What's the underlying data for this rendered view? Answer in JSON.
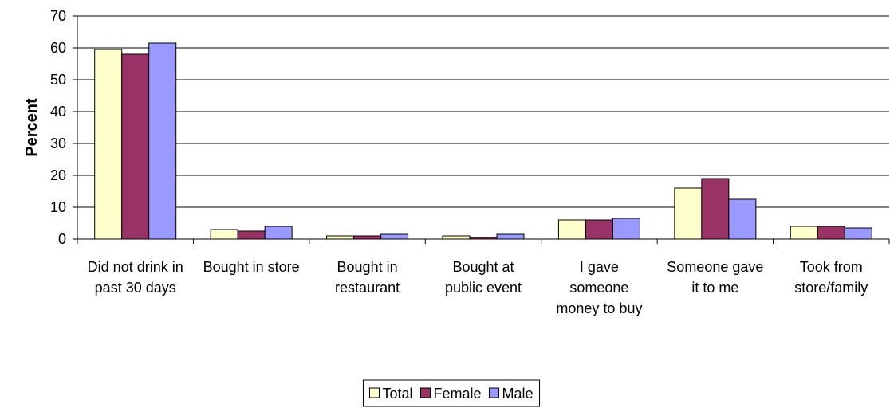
{
  "chart_data": {
    "type": "bar",
    "y_label": "Percent",
    "categories": [
      "Did not drink in past 30 days",
      "Bought in store",
      "Bought in restaurant",
      "Bought at public event",
      "I gave someone money to buy",
      "Someone gave it to me",
      "Took from store/family"
    ],
    "series": [
      {
        "name": "Total",
        "color": "#ffffcc",
        "values": [
          59.5,
          3,
          1,
          1,
          6,
          16,
          4
        ]
      },
      {
        "name": "Female",
        "color": "#993366",
        "values": [
          58,
          2.5,
          1,
          0.5,
          6,
          19,
          4
        ]
      },
      {
        "name": "Male",
        "color": "#9999ff",
        "values": [
          61.5,
          4,
          1.5,
          1.5,
          6.5,
          12.5,
          3.5
        ]
      }
    ],
    "ylim": [
      0,
      70
    ],
    "yticks": [
      0,
      10,
      20,
      30,
      40,
      50,
      60,
      70
    ],
    "grid": true,
    "legend": "bottom"
  }
}
